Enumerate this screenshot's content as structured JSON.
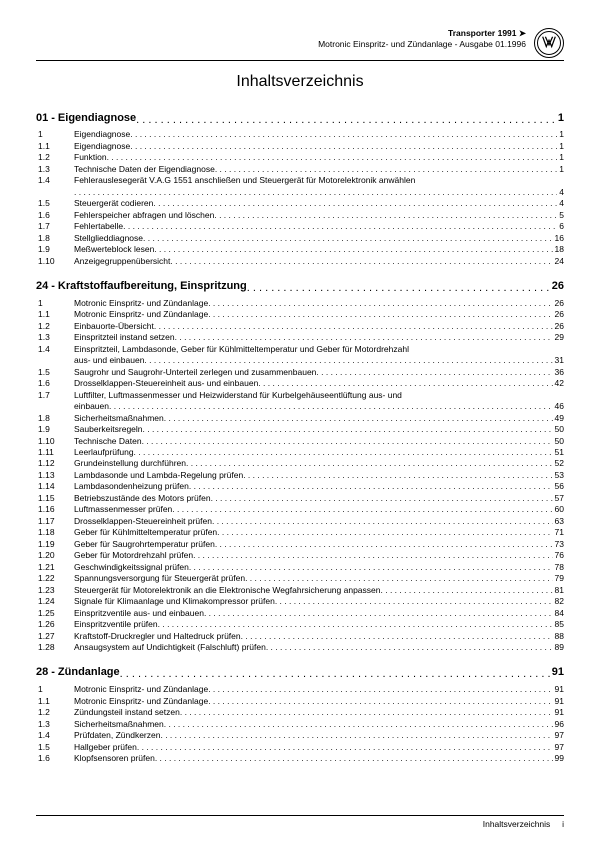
{
  "header": {
    "line1": "Transporter 1991 ➤",
    "line2": "Motronic Einspritz- und Zündanlage - Ausgabe 01.1996"
  },
  "title": "Inhaltsverzeichnis",
  "sections": [
    {
      "num": "01",
      "label": "Eigendiagnose",
      "page": "1",
      "items": [
        {
          "idx": "1",
          "txt": "Eigendiagnose",
          "pg": "1"
        },
        {
          "idx": "1.1",
          "txt": "Eigendiagnose",
          "pg": "1"
        },
        {
          "idx": "1.2",
          "txt": "Funktion",
          "pg": "1"
        },
        {
          "idx": "1.3",
          "txt": "Technische Daten der Eigendiagnose",
          "pg": "1"
        },
        {
          "idx": "1.4",
          "txt": "Fehlerauslesegerät V.A.G 1551 anschließen und Steuergerät für Motorelektronik anwählen",
          "txt2": "",
          "pg": "4",
          "multi": true
        },
        {
          "idx": "1.5",
          "txt": "Steuergerät codieren",
          "pg": "4"
        },
        {
          "idx": "1.6",
          "txt": "Fehlerspeicher abfragen und löschen",
          "pg": "5"
        },
        {
          "idx": "1.7",
          "txt": "Fehlertabelle",
          "pg": "6"
        },
        {
          "idx": "1.8",
          "txt": "Stellglieddiagnose",
          "pg": "16"
        },
        {
          "idx": "1.9",
          "txt": "Meßwerteblock lesen",
          "pg": "18"
        },
        {
          "idx": "1.10",
          "txt": "Anzeigegruppenübersicht",
          "pg": "24"
        }
      ]
    },
    {
      "num": "24",
      "label": "Kraftstoffaufbereitung, Einspritzung",
      "page": "26",
      "items": [
        {
          "idx": "1",
          "txt": "Motronic Einspritz- und Zündanlage",
          "pg": "26"
        },
        {
          "idx": "1.1",
          "txt": "Motronic Einspritz- und Zündanlage",
          "pg": "26"
        },
        {
          "idx": "1.2",
          "txt": "Einbauorte-Übersicht",
          "pg": "26"
        },
        {
          "idx": "1.3",
          "txt": "Einspritzteil instand setzen",
          "pg": "29"
        },
        {
          "idx": "1.4",
          "txt": "Einspritzteil, Lambdasonde, Geber für Kühlmitteltemperatur und Geber für Motordrehzahl",
          "txt2": "aus- und einbauen",
          "pg": "31",
          "multi": true
        },
        {
          "idx": "1.5",
          "txt": "Saugrohr und Saugrohr-Unterteil zerlegen und zusammenbauen",
          "pg": "36"
        },
        {
          "idx": "1.6",
          "txt": "Drosselklappen-Steuereinheit aus- und einbauen",
          "pg": "42"
        },
        {
          "idx": "1.7",
          "txt": "Luftfilter, Luftmassenmesser und Heizwiderstand für Kurbelgehäuseentlüftung aus- und",
          "txt2": "einbauen",
          "pg": "46",
          "multi": true
        },
        {
          "idx": "1.8",
          "txt": "Sicherheitsmaßnahmen",
          "pg": "49"
        },
        {
          "idx": "1.9",
          "txt": "Sauberkeitsregeln",
          "pg": "50"
        },
        {
          "idx": "1.10",
          "txt": "Technische Daten",
          "pg": "50"
        },
        {
          "idx": "1.11",
          "txt": "Leerlaufprüfung",
          "pg": "51"
        },
        {
          "idx": "1.12",
          "txt": "Grundeinstellung durchführen",
          "pg": "52"
        },
        {
          "idx": "1.13",
          "txt": "Lambdasonde und Lambda-Regelung prüfen",
          "pg": "53"
        },
        {
          "idx": "1.14",
          "txt": "Lambdasondenheizung prüfen",
          "pg": "56"
        },
        {
          "idx": "1.15",
          "txt": "Betriebszustände des Motors prüfen",
          "pg": "57"
        },
        {
          "idx": "1.16",
          "txt": "Luftmassenmesser prüfen",
          "pg": "60"
        },
        {
          "idx": "1.17",
          "txt": "Drosselklappen-Steuereinheit prüfen",
          "pg": "63"
        },
        {
          "idx": "1.18",
          "txt": "Geber für Kühlmitteltemperatur prüfen",
          "pg": "71"
        },
        {
          "idx": "1.19",
          "txt": "Geber für Saugrohrtemperatur prüfen",
          "pg": "73"
        },
        {
          "idx": "1.20",
          "txt": "Geber für Motordrehzahl prüfen",
          "pg": "76"
        },
        {
          "idx": "1.21",
          "txt": "Geschwindigkeitssignal prüfen",
          "pg": "78"
        },
        {
          "idx": "1.22",
          "txt": "Spannungsversorgung für Steuergerät prüfen",
          "pg": "79"
        },
        {
          "idx": "1.23",
          "txt": "Steuergerät für Motorelektronik an die Elektronische Wegfahrsicherung anpassen",
          "pg": "81"
        },
        {
          "idx": "1.24",
          "txt": "Signale für Klimaanlage und Klimakompressor prüfen",
          "pg": "82"
        },
        {
          "idx": "1.25",
          "txt": "Einspritzventile aus- und einbauen",
          "pg": "84"
        },
        {
          "idx": "1.26",
          "txt": "Einspritzventile prüfen",
          "pg": "85"
        },
        {
          "idx": "1.27",
          "txt": "Kraftstoff-Druckregler und Haltedruck prüfen",
          "pg": "88"
        },
        {
          "idx": "1.28",
          "txt": "Ansaugsystem auf Undichtigkeit (Falschluft) prüfen",
          "pg": "89"
        }
      ]
    },
    {
      "num": "28",
      "label": "Zündanlage",
      "page": "91",
      "items": [
        {
          "idx": "1",
          "txt": "Motronic Einspritz- und Zündanlage",
          "pg": "91"
        },
        {
          "idx": "1.1",
          "txt": "Motronic Einspritz- und Zündanlage",
          "pg": "91"
        },
        {
          "idx": "1.2",
          "txt": "Zündungsteil instand setzen",
          "pg": "91"
        },
        {
          "idx": "1.3",
          "txt": "Sicherheitsmaßnahmen",
          "pg": "96"
        },
        {
          "idx": "1.4",
          "txt": "Prüfdaten, Zündkerzen",
          "pg": "97"
        },
        {
          "idx": "1.5",
          "txt": "Hallgeber prüfen",
          "pg": "97"
        },
        {
          "idx": "1.6",
          "txt": "Klopfsensoren prüfen",
          "pg": "99"
        }
      ]
    }
  ],
  "footer": {
    "label": "Inhaltsverzeichnis",
    "roman": "i"
  }
}
